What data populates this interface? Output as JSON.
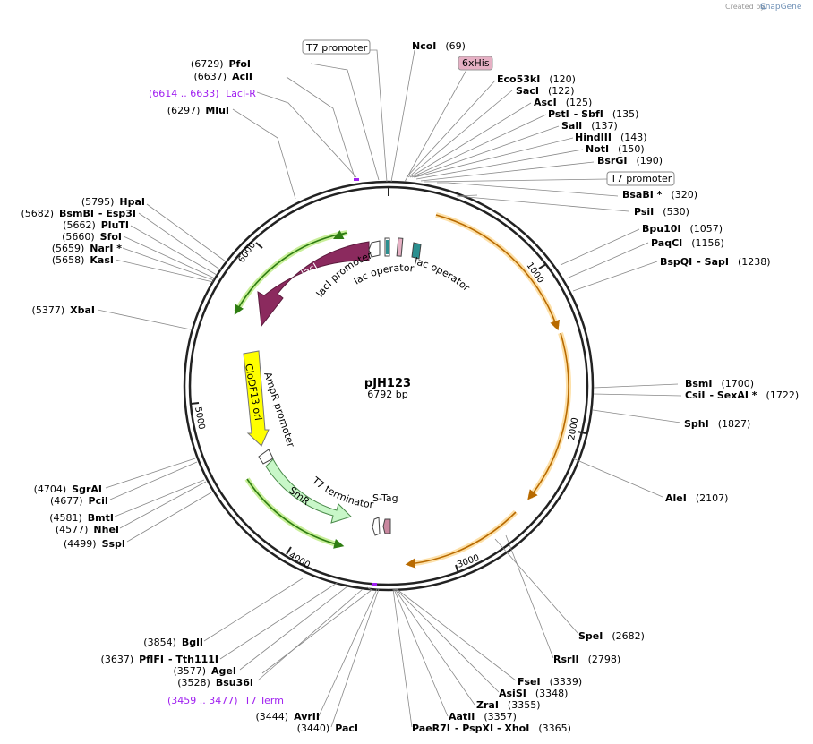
{
  "credit": "Created by",
  "brand": "SnapGene",
  "plasmid": {
    "name": "pJH123",
    "size": "6792 bp"
  },
  "ticks": [
    "1000",
    "2000",
    "3000",
    "4000",
    "5000",
    "6000"
  ],
  "boxed_labels": {
    "t7_top": "T7 promoter",
    "his": "6xHis",
    "t7_right": "T7 promoter"
  },
  "sites_left": [
    {
      "pos": "(6729)",
      "name": "PfoI"
    },
    {
      "pos": "(6637)",
      "name": "AclI"
    },
    {
      "pos": "(6297)",
      "name": "MluI"
    },
    {
      "pos": "(5795)",
      "name": "HpaI"
    },
    {
      "pos": "(5682)",
      "name": "BsmBI",
      "suffix": "- Esp3I"
    },
    {
      "pos": "(5662)",
      "name": "PluTI"
    },
    {
      "pos": "(5660)",
      "name": "SfoI"
    },
    {
      "pos": "(5659)",
      "name": "NarI *"
    },
    {
      "pos": "(5658)",
      "name": "KasI"
    },
    {
      "pos": "(5377)",
      "name": "XbaI"
    },
    {
      "pos": "(4704)",
      "name": "SgrAI"
    },
    {
      "pos": "(4677)",
      "name": "PciI"
    },
    {
      "pos": "(4581)",
      "name": "BmtI"
    },
    {
      "pos": "(4577)",
      "name": "NheI"
    },
    {
      "pos": "(4499)",
      "name": "SspI"
    },
    {
      "pos": "(3854)",
      "name": "BglI"
    },
    {
      "pos": "(3637)",
      "name": "PflFI",
      "suffix": "- Tth111I"
    },
    {
      "pos": "(3577)",
      "name": "AgeI"
    },
    {
      "pos": "(3528)",
      "name": "Bsu36I"
    },
    {
      "pos": "(3444)",
      "name": "AvrII"
    },
    {
      "pos": "(3440)",
      "name": "PacI"
    }
  ],
  "sites_right": [
    {
      "name": "NcoI",
      "pos": "(69)"
    },
    {
      "name": "Eco53kI",
      "pos": "(120)"
    },
    {
      "name": "SacI",
      "pos": "(122)"
    },
    {
      "name": "AscI",
      "pos": "(125)"
    },
    {
      "name": "PstI",
      "suffix": "- SbfI",
      "pos": "(135)"
    },
    {
      "name": "SalI",
      "pos": "(137)"
    },
    {
      "name": "HindIII",
      "pos": "(143)"
    },
    {
      "name": "NotI",
      "pos": "(150)"
    },
    {
      "name": "BsrGI",
      "pos": "(190)"
    },
    {
      "name": "BsaBI *",
      "pos": "(320)"
    },
    {
      "name": "PsiI",
      "pos": "(530)"
    },
    {
      "name": "Bpu10I",
      "pos": "(1057)"
    },
    {
      "name": "PaqCI",
      "pos": "(1156)"
    },
    {
      "name": "BspQI",
      "suffix": "- SapI",
      "pos": "(1238)"
    },
    {
      "name": "BsmI",
      "pos": "(1700)"
    },
    {
      "name": "CsiI",
      "suffix": "- SexAI *",
      "pos": "(1722)"
    },
    {
      "name": "SphI",
      "pos": "(1827)"
    },
    {
      "name": "AleI",
      "pos": "(2107)"
    },
    {
      "name": "SpeI",
      "pos": "(2682)"
    },
    {
      "name": "RsrII",
      "pos": "(2798)"
    },
    {
      "name": "FseI",
      "pos": "(3339)"
    },
    {
      "name": "AsiSI",
      "pos": "(3348)"
    },
    {
      "name": "ZraI",
      "pos": "(3355)"
    },
    {
      "name": "AatII",
      "pos": "(3357)"
    },
    {
      "name": "PaeR7I",
      "suffix": "- PspXI - XhoI",
      "pos": "(3365)"
    }
  ],
  "primers": [
    {
      "range": "(6614 .. 6633)",
      "name": "LacI-R"
    },
    {
      "range": "(3459 .. 3477)",
      "name": "T7 Term"
    }
  ],
  "features": {
    "laci": "lacI",
    "laci_promoter": "lacI promoter",
    "lac_operator_1": "lac operator",
    "lac_operator_2": "lac operator",
    "clodf13": "CloDF13 ori",
    "ampr_promoter": "AmpR promoter",
    "smr": "SmR",
    "t7_terminator": "T7 terminator",
    "s_tag": "S-Tag"
  },
  "colors": {
    "backbone": "#333333",
    "laci": "#8b2a5e",
    "clodf13": "#ffff00",
    "smr": "#c8f7c8",
    "orf_green": "#2e7d12",
    "orf_orange": "#c77800",
    "primer": "#a020f0",
    "his": "#e6b0c4"
  }
}
